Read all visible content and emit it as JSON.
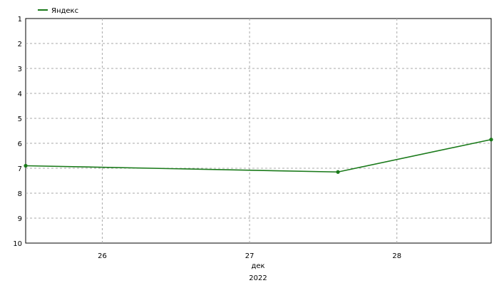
{
  "legend": {
    "label": "Яндекс",
    "color": "#1a7a1a"
  },
  "chart_data": {
    "type": "line",
    "title": "",
    "xlabel": "дек",
    "xlabel_year": "2022",
    "ylabel": "",
    "y_inverted": true,
    "ylim": [
      1,
      10
    ],
    "yticks": [
      "1",
      "2",
      "3",
      "4",
      "5",
      "6",
      "7",
      "8",
      "9",
      "10"
    ],
    "x_ticks": [
      {
        "label": "26",
        "x": 26.0
      },
      {
        "label": "27",
        "x": 27.0
      },
      {
        "label": "28",
        "x": 28.0
      }
    ],
    "xlim": [
      25.48,
      28.64
    ],
    "grid": true,
    "legend_position": "top-left",
    "series": [
      {
        "name": "Яндекс",
        "color": "#1a7a1a",
        "points": [
          {
            "x": 25.48,
            "y": 6.9
          },
          {
            "x": 27.6,
            "y": 7.15
          },
          {
            "x": 28.64,
            "y": 5.85
          }
        ]
      }
    ]
  }
}
